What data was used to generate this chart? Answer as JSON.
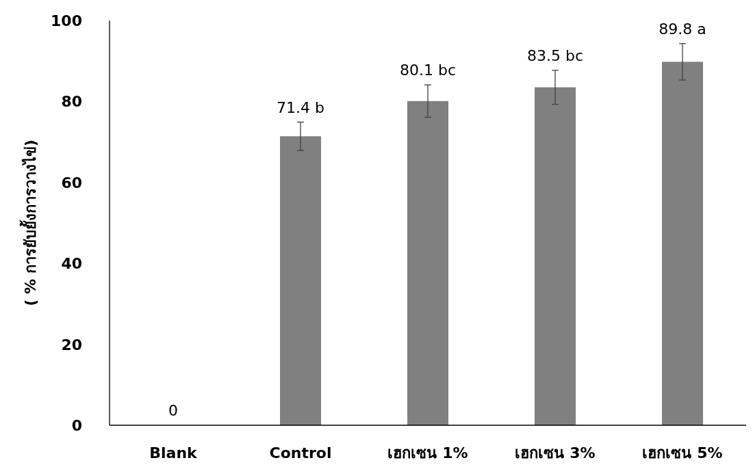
{
  "chart_data": {
    "type": "bar",
    "ylabel": "( % การยับยั้งการวางไข่)",
    "categories": [
      "Blank",
      "Control",
      "เฮกเซน 1%",
      "เฮกเซน 3%",
      "เฮกเซน 5%"
    ],
    "values": [
      0,
      71.4,
      80.1,
      83.5,
      89.8
    ],
    "errors": [
      null,
      3.5,
      4.0,
      4.2,
      4.5
    ],
    "value_labels": [
      "0",
      "71.4 b",
      "80.1 bc",
      "83.5 bc",
      "89.8 a"
    ],
    "color": "#808080",
    "ylim": [
      0,
      100
    ],
    "yticks": [
      0,
      20,
      40,
      60,
      80,
      100
    ],
    "grid": false
  }
}
